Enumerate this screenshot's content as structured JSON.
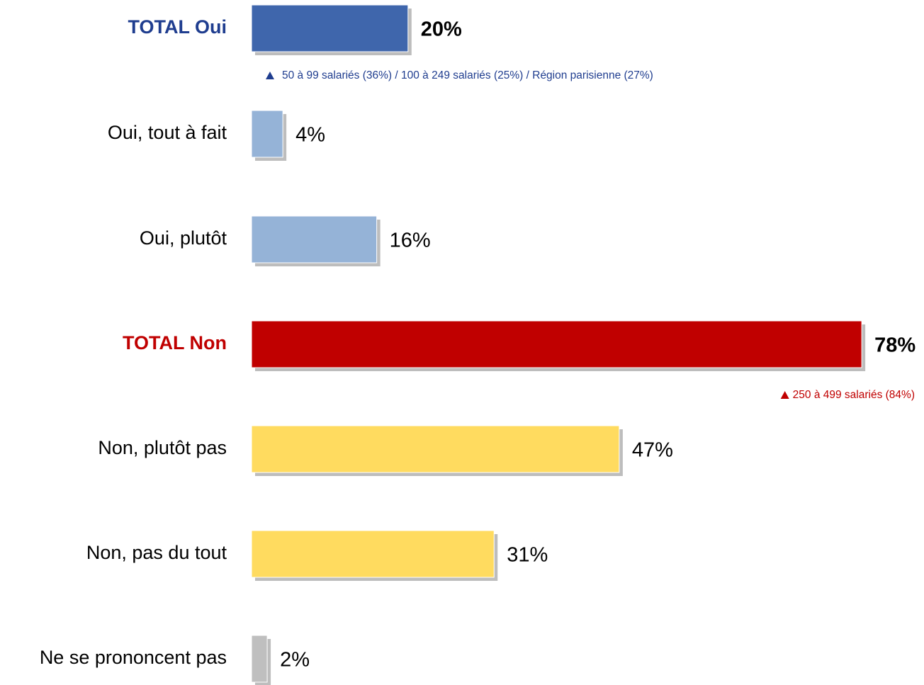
{
  "chart_data": {
    "type": "hbar",
    "categories": [
      "TOTAL Oui",
      "Oui, tout à fait",
      "Oui, plutôt",
      "TOTAL Non",
      "Non, plutôt pas",
      "Non, pas du tout",
      "Ne se prononcent pas"
    ],
    "values": [
      20,
      4,
      16,
      78,
      47,
      31,
      2
    ],
    "value_labels": [
      "20%",
      "4%",
      "16%",
      "78%",
      "47%",
      "31%",
      "2%"
    ],
    "colors": [
      "#3f66ac",
      "#95b3d7",
      "#95b3d7",
      "#c00000",
      "#ffdb5f",
      "#ffdb5f",
      "#bfbfbf"
    ],
    "label_colors": [
      "#1f3d8f",
      "#000000",
      "#000000",
      "#c00000",
      "#000000",
      "#000000",
      "#000000"
    ],
    "bold": [
      true,
      false,
      false,
      true,
      false,
      false,
      false
    ],
    "annotations": [
      {
        "text": "50 à 99 salariés (36%) / 100 à 249 salariés (25%) / Région parisienne (27%)",
        "color": "#1f3d8f"
      },
      {
        "text": "250 à 499 salariés (84%)",
        "color": "#c00000"
      }
    ]
  }
}
